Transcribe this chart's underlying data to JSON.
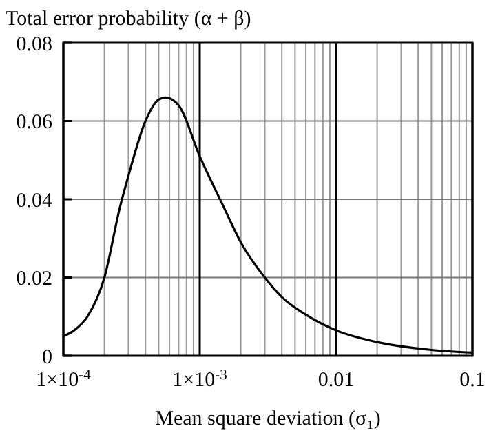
{
  "chart_data": {
    "type": "line",
    "title": "Total error probability (α + β)",
    "xlabel": "Mean square deviation (σ₁)",
    "log": "x",
    "grid": true,
    "line_style": "solid",
    "xlim": [
      0.0001,
      0.1
    ],
    "xticks": [
      {
        "value": 0.0001,
        "label": "1×10$^{-4}$"
      },
      {
        "value": 0.001,
        "label": "1×10$^{-3}$"
      },
      {
        "value": 0.01,
        "label": "0.01"
      },
      {
        "value": 0.1,
        "label": "0.1"
      }
    ],
    "ylim": [
      0,
      0.08
    ],
    "yticks": [
      0,
      0.02,
      0.04,
      0.06,
      0.08
    ],
    "x": [
      0.0001,
      0.00012,
      0.00015,
      0.0002,
      0.00026,
      0.0003,
      0.0004,
      0.0005,
      0.00056,
      0.0007,
      0.001,
      0.0015,
      0.002,
      0.003,
      0.004,
      0.006,
      0.01,
      0.02,
      0.05,
      0.1
    ],
    "series": [
      {
        "color": "#000000",
        "values": [
          0.005,
          0.0065,
          0.01,
          0.02,
          0.038,
          0.046,
          0.06,
          0.0655,
          0.066,
          0.064,
          0.051,
          0.038,
          0.029,
          0.02,
          0.015,
          0.0105,
          0.0065,
          0.0035,
          0.0015,
          0.0008
        ]
      }
    ]
  }
}
